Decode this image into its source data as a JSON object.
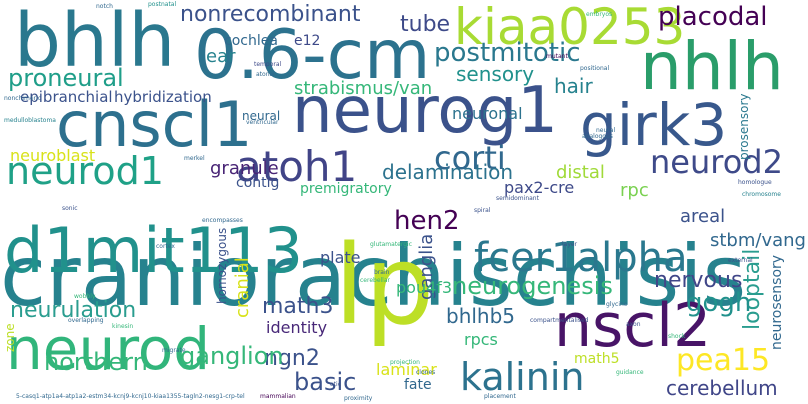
{
  "palette": {
    "purple": "#440154",
    "indigo": "#3b528b",
    "blue": "#31688e",
    "teal": "#21918c",
    "green": "#35b779",
    "lime": "#90d743",
    "yellow": "#d8e219",
    "pale": "#bddf26"
  },
  "words": [
    {
      "text": "craniorachischisis",
      "color": "#26828e",
      "size": 84
    },
    {
      "text": "lp",
      "color": "#bddf26",
      "size": 110
    },
    {
      "text": "neurog1",
      "color": "#3b528b",
      "size": 64
    },
    {
      "text": "0.6-cm",
      "color": "#2c728e",
      "size": 68
    },
    {
      "text": "bhlh",
      "color": "#2a788e",
      "size": 74
    },
    {
      "text": "cnscl1",
      "color": "#2d708e",
      "size": 62
    },
    {
      "text": "d1mit113",
      "color": "#21918c",
      "size": 62
    },
    {
      "text": "nhlh",
      "color": "#2a9d6a",
      "size": 66
    },
    {
      "text": "girk3",
      "color": "#38588c",
      "size": 58
    },
    {
      "text": "kiaa0253",
      "color": "#a8db34",
      "size": 50
    },
    {
      "text": "neurod",
      "color": "#31b57b",
      "size": 58
    },
    {
      "text": "nscl2",
      "color": "#481467",
      "size": 60
    },
    {
      "text": "atoh1",
      "color": "#414487",
      "size": 42
    },
    {
      "text": "fcer1alpha",
      "color": "#2a788e",
      "size": 40
    },
    {
      "text": "kalinin",
      "color": "#2c728e",
      "size": 38
    },
    {
      "text": "neurod1",
      "color": "#1fa187",
      "size": 38
    },
    {
      "text": "neurod2",
      "color": "#3e4a89",
      "size": 32
    },
    {
      "text": "corti",
      "color": "#31688e",
      "size": 32
    },
    {
      "text": "postmitotic",
      "color": "#2a788e",
      "size": 26
    },
    {
      "text": "placodal",
      "color": "#440154",
      "size": 26
    },
    {
      "text": "nonrecombinant",
      "color": "#3b528b",
      "size": 22
    },
    {
      "text": "tube",
      "color": "#3e4a89",
      "size": 22
    },
    {
      "text": "sensory",
      "color": "#21918c",
      "size": 20
    },
    {
      "text": "proneural",
      "color": "#1f9e89",
      "size": 24
    },
    {
      "text": "strabismus/van",
      "color": "#35b779",
      "size": 18
    },
    {
      "text": "epibranchial",
      "color": "#3b528b",
      "size": 15
    },
    {
      "text": "hybridization",
      "color": "#3b528b",
      "size": 15
    },
    {
      "text": "neuronal",
      "color": "#2c728e",
      "size": 16
    },
    {
      "text": "hair",
      "color": "#26828e",
      "size": 20
    },
    {
      "text": "delamination",
      "color": "#2c728e",
      "size": 20
    },
    {
      "text": "neuroblast",
      "color": "#d8e219",
      "size": 16
    },
    {
      "text": "granule",
      "color": "#482475",
      "size": 18
    },
    {
      "text": "contig",
      "color": "#3b528b",
      "size": 14
    },
    {
      "text": "distal",
      "color": "#a0da39",
      "size": 18
    },
    {
      "text": "rpc",
      "color": "#7ad151",
      "size": 18
    },
    {
      "text": "stbm/vang",
      "color": "#31688e",
      "size": 18
    },
    {
      "text": "prosensory",
      "color": "#2a788e",
      "size": 12
    },
    {
      "text": "pax2-cre",
      "color": "#3e4a89",
      "size": 16
    },
    {
      "text": "premigratory",
      "color": "#35b779",
      "size": 14
    },
    {
      "text": "areal",
      "color": "#3b528b",
      "size": 18
    },
    {
      "text": "hen2",
      "color": "#440154",
      "size": 26
    },
    {
      "text": "neurogenesis",
      "color": "#35b779",
      "size": 24
    },
    {
      "text": "nervous",
      "color": "#404688",
      "size": 22
    },
    {
      "text": "neurulation",
      "color": "#2a9d8f",
      "size": 22
    },
    {
      "text": "ganglia",
      "color": "#3b528b",
      "size": 18
    },
    {
      "text": "math3",
      "color": "#3b528b",
      "size": 22
    },
    {
      "text": "looptail",
      "color": "#2a9d8f",
      "size": 22
    },
    {
      "text": "pou4f3",
      "color": "#35b779",
      "size": 16
    },
    {
      "text": "bhlhb5",
      "color": "#31688e",
      "size": 20
    },
    {
      "text": "gogh",
      "color": "#21918c",
      "size": 26
    },
    {
      "text": "neurosensory",
      "color": "#31688e",
      "size": 14
    },
    {
      "text": "cranial",
      "color": "#d8e219",
      "size": 18
    },
    {
      "text": "plate",
      "color": "#3b528b",
      "size": 16
    },
    {
      "text": "identity",
      "color": "#482878",
      "size": 16
    },
    {
      "text": "ngn2",
      "color": "#3b528b",
      "size": 22
    },
    {
      "text": "rpcs",
      "color": "#35b779",
      "size": 16
    },
    {
      "text": "pea15",
      "color": "#fde725",
      "size": 30
    },
    {
      "text": "math5",
      "color": "#bddf26",
      "size": 14
    },
    {
      "text": "northern",
      "color": "#35b779",
      "size": 24
    },
    {
      "text": "ganglion",
      "color": "#35b779",
      "size": 24
    },
    {
      "text": "basic",
      "color": "#3b528b",
      "size": 24
    },
    {
      "text": "laminar",
      "color": "#d8e219",
      "size": 16
    },
    {
      "text": "fate",
      "color": "#31688e",
      "size": 14
    },
    {
      "text": "cerebellum",
      "color": "#404688",
      "size": 20
    },
    {
      "text": "ear",
      "color": "#26828e",
      "size": 18
    },
    {
      "text": "e12",
      "color": "#3e4a89",
      "size": 14
    },
    {
      "text": "cochlea",
      "color": "#31688e",
      "size": 14
    },
    {
      "text": "neural",
      "color": "#31688e",
      "size": 12
    },
    {
      "text": "homozygous",
      "color": "#3b528b",
      "size": 12
    },
    {
      "text": "zone",
      "color": "#bddf26",
      "size": 12
    },
    {
      "text": "5-casq1-atp1a4-atp1a2-estm34-kcnj9-kcnj10-kiaa1355-tagln2-nesg1-crp-tel",
      "color": "#31688e",
      "size": 6
    },
    {
      "text": "mammalian",
      "color": "#440154",
      "size": 6
    },
    {
      "text": "placement",
      "color": "#31688e",
      "size": 6
    },
    {
      "text": "spiral",
      "color": "#3b528b",
      "size": 6
    },
    {
      "text": "external",
      "color": "#3b528b",
      "size": 6
    },
    {
      "text": "axon",
      "color": "#3b528b",
      "size": 6
    },
    {
      "text": "notch",
      "color": "#31688e",
      "size": 6
    },
    {
      "text": "postnatal",
      "color": "#21918c",
      "size": 6
    },
    {
      "text": "embryos",
      "color": "#35b779",
      "size": 6
    },
    {
      "text": "temporal",
      "color": "#3e4a89",
      "size": 6
    },
    {
      "text": "atonal",
      "color": "#31688e",
      "size": 6
    },
    {
      "text": "medulloblastoma",
      "color": "#26828e",
      "size": 6
    },
    {
      "text": "ventricular",
      "color": "#31688e",
      "size": 6
    },
    {
      "text": "analogous",
      "color": "#31688e",
      "size": 6
    },
    {
      "text": "chromosome",
      "color": "#26828e",
      "size": 6
    },
    {
      "text": "homologue",
      "color": "#3b528b",
      "size": 6
    },
    {
      "text": "positional",
      "color": "#31688e",
      "size": 6
    },
    {
      "text": "nonchimeric",
      "color": "#31688e",
      "size": 6
    },
    {
      "text": "overlapping",
      "color": "#31688e",
      "size": 6
    },
    {
      "text": "kinesin",
      "color": "#35b779",
      "size": 6
    },
    {
      "text": "sonic",
      "color": "#3b528b",
      "size": 6
    },
    {
      "text": "encompasses",
      "color": "#31688e",
      "size": 6
    },
    {
      "text": "neural",
      "color": "#31688e",
      "size": 6
    },
    {
      "text": "layer",
      "color": "#3b528b",
      "size": 6
    },
    {
      "text": "compartmentalised",
      "color": "#3b528b",
      "size": 6
    },
    {
      "text": "wobbly",
      "color": "#35b779",
      "size": 6
    },
    {
      "text": "cortex",
      "color": "#31688e",
      "size": 6
    },
    {
      "text": "glutamatergic",
      "color": "#35b779",
      "size": 6
    },
    {
      "text": "migrate",
      "color": "#31688e",
      "size": 6
    },
    {
      "text": "clones",
      "color": "#31688e",
      "size": 6
    },
    {
      "text": "guidance",
      "color": "#35b779",
      "size": 6
    },
    {
      "text": "proximity",
      "color": "#31688e",
      "size": 6
    },
    {
      "text": "semidominant",
      "color": "#3b528b",
      "size": 6
    },
    {
      "text": "brain",
      "color": "#31688e",
      "size": 6
    },
    {
      "text": "cerebellar",
      "color": "#35b779",
      "size": 6
    },
    {
      "text": "merkel",
      "color": "#31688e",
      "size": 6
    },
    {
      "text": "otic",
      "color": "#3b528b",
      "size": 6
    },
    {
      "text": "projection",
      "color": "#35b779",
      "size": 6
    },
    {
      "text": "shock",
      "color": "#35b779",
      "size": 6
    },
    {
      "text": "glycine",
      "color": "#31688e",
      "size": 6
    },
    {
      "text": "mutant",
      "color": "#440154",
      "size": 6
    }
  ]
}
